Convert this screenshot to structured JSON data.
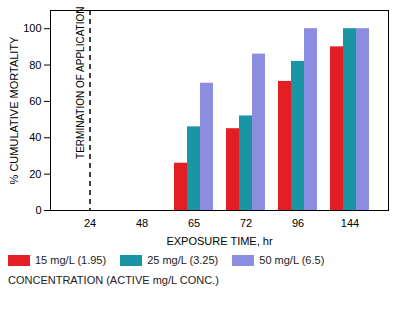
{
  "chart_data": {
    "type": "bar",
    "xlabel": "EXPOSURE TIME, hr",
    "ylabel": "% CUMULATIVE MORTALITY",
    "categories": [
      "24",
      "48",
      "65",
      "72",
      "96",
      "144"
    ],
    "series": [
      {
        "name": "15 mg/L (1.95)",
        "color": "#e31e24",
        "values": [
          0,
          0,
          26,
          45,
          71,
          90
        ]
      },
      {
        "name": "25 mg/L (3.25)",
        "color": "#1995a3",
        "values": [
          0,
          0,
          46,
          52,
          82,
          100
        ]
      },
      {
        "name": "50 mg/L (6.5)",
        "color": "#8c8ce0",
        "values": [
          0,
          0,
          70,
          86,
          100,
          100
        ]
      }
    ],
    "ylim": [
      0,
      110
    ],
    "yticks": [
      0,
      20,
      40,
      60,
      80,
      100
    ],
    "grid": false,
    "legend": "bottom",
    "legend_title": "CONCENTRATION (ACTIVE mg/L CONC.)",
    "annotations": [
      {
        "text": "TERMINATION OF APPLICATION",
        "x": "24",
        "line_style": "dashed"
      }
    ]
  }
}
